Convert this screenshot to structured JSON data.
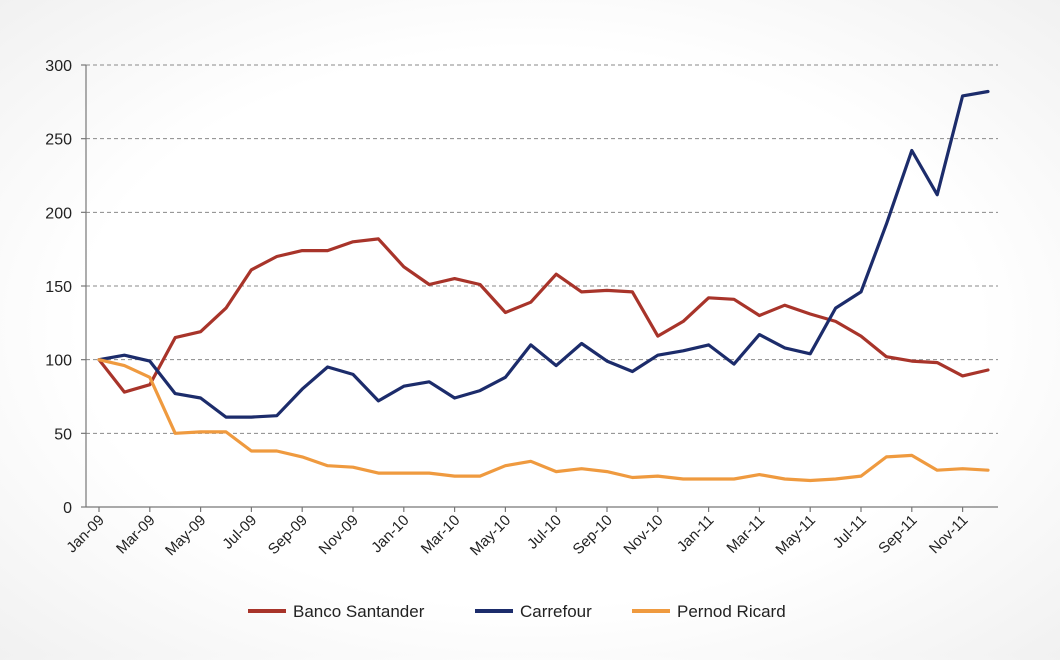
{
  "chart_data": {
    "type": "line",
    "x": [
      "Jan-09",
      "Feb-09",
      "Mar-09",
      "Apr-09",
      "May-09",
      "Jun-09",
      "Jul-09",
      "Aug-09",
      "Sep-09",
      "Oct-09",
      "Nov-09",
      "Dec-09",
      "Jan-10",
      "Feb-10",
      "Mar-10",
      "Apr-10",
      "May-10",
      "Jun-10",
      "Jul-10",
      "Aug-10",
      "Sep-10",
      "Oct-10",
      "Nov-10",
      "Dec-10",
      "Jan-11",
      "Feb-11",
      "Mar-11",
      "Apr-11",
      "May-11",
      "Jun-11",
      "Jul-11",
      "Aug-11",
      "Sep-11",
      "Oct-11",
      "Nov-11",
      "Dec-11"
    ],
    "x_tick_labels": [
      "Jan-09",
      "Mar-09",
      "May-09",
      "Jul-09",
      "Sep-09",
      "Nov-09",
      "Jan-10",
      "Mar-10",
      "May-10",
      "Jul-10",
      "Sep-10",
      "Nov-10",
      "Jan-11",
      "Mar-11",
      "May-11",
      "Jul-11",
      "Sep-11",
      "Nov-11"
    ],
    "y_ticks": [
      0,
      50,
      100,
      150,
      200,
      250,
      300
    ],
    "ylim": [
      0,
      300
    ],
    "grid": true,
    "legend_position": "bottom",
    "series": [
      {
        "name": "Banco Santander",
        "color": "#a8342a",
        "values": [
          100,
          78,
          83,
          115,
          119,
          135,
          161,
          170,
          174,
          174,
          180,
          182,
          163,
          151,
          155,
          151,
          132,
          139,
          158,
          146,
          147,
          146,
          116,
          126,
          142,
          141,
          130,
          137,
          131,
          126,
          116,
          102,
          99,
          98,
          89,
          93
        ]
      },
      {
        "name": "Carrefour",
        "color": "#1c2c6b",
        "values": [
          100,
          103,
          99,
          77,
          74,
          61,
          61,
          62,
          80,
          95,
          90,
          72,
          82,
          85,
          74,
          79,
          88,
          110,
          96,
          111,
          99,
          92,
          103,
          106,
          110,
          97,
          117,
          108,
          104,
          135,
          146,
          192,
          242,
          212,
          279,
          282
        ]
      },
      {
        "name": "Pernod Ricard",
        "color": "#ef9a3f",
        "values": [
          100,
          96,
          88,
          50,
          51,
          51,
          38,
          38,
          34,
          28,
          27,
          23,
          23,
          23,
          21,
          21,
          28,
          31,
          24,
          26,
          24,
          20,
          21,
          19,
          19,
          19,
          22,
          19,
          18,
          19,
          21,
          34,
          35,
          25,
          26,
          25
        ]
      }
    ]
  }
}
